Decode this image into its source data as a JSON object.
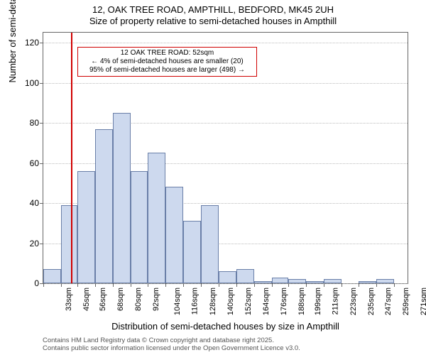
{
  "chart": {
    "type": "histogram",
    "title_main": "12, OAK TREE ROAD, AMPTHILL, BEDFORD, MK45 2UH",
    "title_sub": "Size of property relative to semi-detached houses in Ampthill",
    "title_fontsize": 13,
    "ylabel": "Number of semi-detached properties",
    "xlabel": "Distribution of semi-detached houses by size in Ampthill",
    "label_fontsize": 13,
    "ylim": [
      0,
      125
    ],
    "yticks": [
      0,
      20,
      40,
      60,
      80,
      100,
      120
    ],
    "xtick_labels": [
      "33sqm",
      "45sqm",
      "56sqm",
      "68sqm",
      "80sqm",
      "92sqm",
      "104sqm",
      "116sqm",
      "128sqm",
      "140sqm",
      "152sqm",
      "164sqm",
      "176sqm",
      "188sqm",
      "199sqm",
      "211sqm",
      "223sqm",
      "235sqm",
      "247sqm",
      "259sqm",
      "271sqm"
    ],
    "bars": [
      {
        "x": 33,
        "w": 12,
        "h": 7
      },
      {
        "x": 45,
        "w": 11,
        "h": 39
      },
      {
        "x": 56,
        "w": 12,
        "h": 56
      },
      {
        "x": 68,
        "w": 12,
        "h": 77
      },
      {
        "x": 80,
        "w": 12,
        "h": 85
      },
      {
        "x": 92,
        "w": 12,
        "h": 56
      },
      {
        "x": 104,
        "w": 12,
        "h": 65
      },
      {
        "x": 116,
        "w": 12,
        "h": 48
      },
      {
        "x": 128,
        "w": 12,
        "h": 31
      },
      {
        "x": 140,
        "w": 12,
        "h": 39
      },
      {
        "x": 152,
        "w": 12,
        "h": 6
      },
      {
        "x": 164,
        "w": 12,
        "h": 7
      },
      {
        "x": 176,
        "w": 12,
        "h": 1
      },
      {
        "x": 188,
        "w": 11,
        "h": 3
      },
      {
        "x": 199,
        "w": 12,
        "h": 2
      },
      {
        "x": 211,
        "w": 12,
        "h": 1
      },
      {
        "x": 223,
        "w": 12,
        "h": 2
      },
      {
        "x": 235,
        "w": 12,
        "h": 0
      },
      {
        "x": 247,
        "w": 12,
        "h": 1
      },
      {
        "x": 259,
        "w": 12,
        "h": 2
      },
      {
        "x": 271,
        "w": 9,
        "h": 0
      }
    ],
    "x_domain": [
      33,
      280
    ],
    "bar_fill": "#cdd9ee",
    "bar_stroke": "#6a7fa8",
    "background_color": "#ffffff",
    "grid_color": "#bbbbbb",
    "reference_line": {
      "x_sqm": 52,
      "color": "#d00000"
    },
    "annotation": {
      "line1": "12 OAK TREE ROAD: 52sqm",
      "line2": "← 4% of semi-detached houses are smaller (20)",
      "line3": "95% of semi-detached houses are larger (498) →",
      "border_color": "#d00000",
      "left_sqm": 56,
      "width_sqm": 122,
      "top_value": 118,
      "height_value": 15
    },
    "footnote_line1": "Contains HM Land Registry data © Crown copyright and database right 2025.",
    "footnote_line2": "Contains public sector information licensed under the Open Government Licence v3.0."
  }
}
